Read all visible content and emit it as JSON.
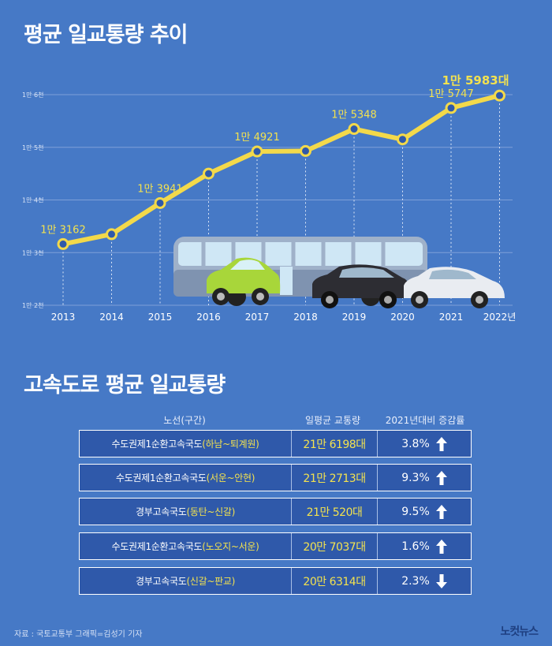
{
  "chart_title": "평균 일교통량 추이",
  "chart_data": {
    "type": "line",
    "title": "평균 일교통량 추이",
    "x": [
      "2013",
      "2014",
      "2015",
      "2016",
      "2017",
      "2018",
      "2019",
      "2020",
      "2021",
      "2022년"
    ],
    "values": [
      13162,
      13350,
      13941,
      14500,
      14921,
      14930,
      15348,
      15150,
      15747,
      15983
    ],
    "data_labels": [
      "1만 3162",
      "",
      "1만 3941",
      "",
      "1만 4921",
      "",
      "1만 5348",
      "",
      "1만 5747",
      "1만 5983대"
    ],
    "ylim": [
      12000,
      16000
    ],
    "y_ticks": [
      12000,
      13000,
      14000,
      15000,
      16000
    ],
    "y_tick_labels": [
      "1만 2천",
      "1만 3천",
      "1만 4천",
      "1만 5천",
      "1만 6천"
    ],
    "colors": {
      "line": "#f3d94a",
      "label": "#f3e24f",
      "grid": "#7ea0d8"
    }
  },
  "table_title": "고속도로 평균 일교통량",
  "table": {
    "headers": {
      "route": "노선(구간)",
      "traffic": "일평균 교통량",
      "change": "2021년대비 증감률"
    },
    "rows": [
      {
        "road": "수도권제1순환고속국도",
        "segment": "(하남~퇴계원)",
        "traffic": "21만 6198대",
        "change": "3.8%",
        "direction": "up"
      },
      {
        "road": "수도권제1순환고속국도",
        "segment": "(서운~안현)",
        "traffic": "21만 2713대",
        "change": "9.3%",
        "direction": "up"
      },
      {
        "road": "경부고속국도",
        "segment": "(동탄~신갈)",
        "traffic": "21만 520대",
        "change": "9.5%",
        "direction": "up"
      },
      {
        "road": "수도권제1순환고속국도",
        "segment": "(노오지~서운)",
        "traffic": "20만 7037대",
        "change": "1.6%",
        "direction": "up"
      },
      {
        "road": "경부고속국도",
        "segment": "(신갈~판교)",
        "traffic": "20만 6314대",
        "change": "2.3%",
        "direction": "down"
      }
    ]
  },
  "footer": {
    "source": "자료 : 국토교통부     그래픽=김성기 기자",
    "logo": "노컷뉴스"
  }
}
